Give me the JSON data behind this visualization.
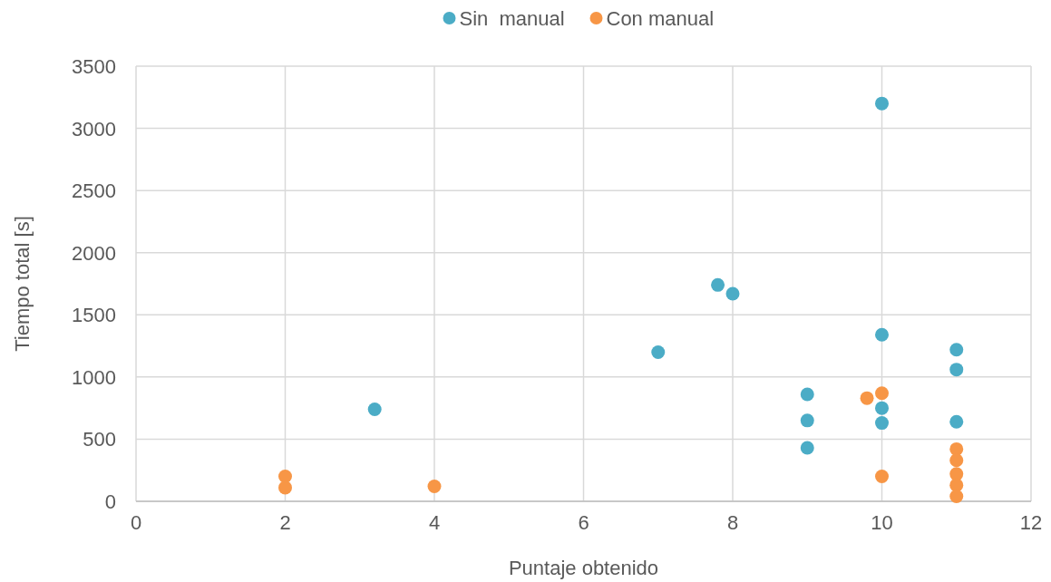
{
  "chart_data": {
    "type": "scatter",
    "xlabel": "Puntaje obtenido",
    "ylabel": "Tiempo total [s]",
    "xlim": [
      0,
      12
    ],
    "xticks": [
      0,
      2,
      4,
      6,
      8,
      10,
      12
    ],
    "ylim": [
      0,
      3500
    ],
    "yticks": [
      0,
      500,
      1000,
      1500,
      2000,
      2500,
      3000,
      3500
    ],
    "grid": true,
    "legend": "top",
    "marker": "circle",
    "series": [
      {
        "name": "Sin  manual",
        "color": "#4bacc6",
        "x": [
          3.2,
          7,
          7.8,
          8,
          9,
          9,
          9,
          10,
          10,
          10,
          10,
          11,
          11,
          11
        ],
        "values": [
          740,
          1200,
          1740,
          1670,
          860,
          650,
          430,
          3200,
          1340,
          750,
          630,
          1220,
          1060,
          640
        ]
      },
      {
        "name": "Con manual",
        "color": "#f79646",
        "x": [
          2,
          2,
          4,
          9.8,
          10,
          10,
          11,
          11,
          11,
          11,
          11
        ],
        "values": [
          200,
          110,
          120,
          830,
          870,
          200,
          420,
          330,
          220,
          130,
          40
        ]
      }
    ]
  }
}
